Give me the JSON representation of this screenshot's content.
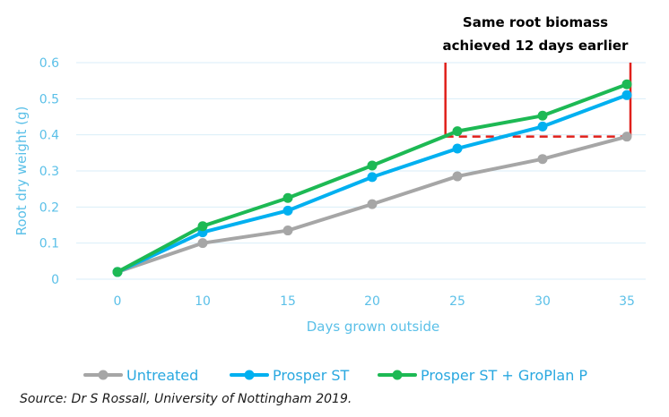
{
  "chart_data": {
    "type": "line",
    "xlabel": "Days grown outside",
    "ylabel": "Root dry weight (g)",
    "x": [
      0,
      10,
      15,
      20,
      25,
      30,
      35
    ],
    "x_tick_labels": [
      "0",
      "10",
      "15",
      "20",
      "25",
      "30",
      "35"
    ],
    "y_tick_labels": [
      "0",
      "0.1",
      "0.2",
      "0.3",
      "0.4",
      "0.5",
      "0.6"
    ],
    "ylim": [
      0,
      0.6
    ],
    "grid": "horizontal",
    "legend_position": "bottom",
    "series": [
      {
        "name": "Untreated",
        "color": "#a6a6a6",
        "values": [
          0.02,
          0.1,
          0.135,
          0.208,
          0.285,
          0.333,
          0.395
        ]
      },
      {
        "name": "Prosper ST",
        "color": "#00b0f0",
        "values": [
          0.02,
          0.13,
          0.19,
          0.283,
          0.362,
          0.423,
          0.51
        ]
      },
      {
        "name": "Prosper ST + GroPlan P",
        "color": "#1db954",
        "values": [
          0.02,
          0.147,
          0.225,
          0.315,
          0.41,
          0.453,
          0.54
        ]
      }
    ],
    "annotation": {
      "lines": [
        "Same root biomass",
        "achieved 12 days earlier"
      ],
      "x_start": 24,
      "x_end": 35,
      "level": 0.395,
      "color": "#e0201b"
    }
  },
  "source": "Source: Dr S Rossall, University of Nottingham 2019."
}
